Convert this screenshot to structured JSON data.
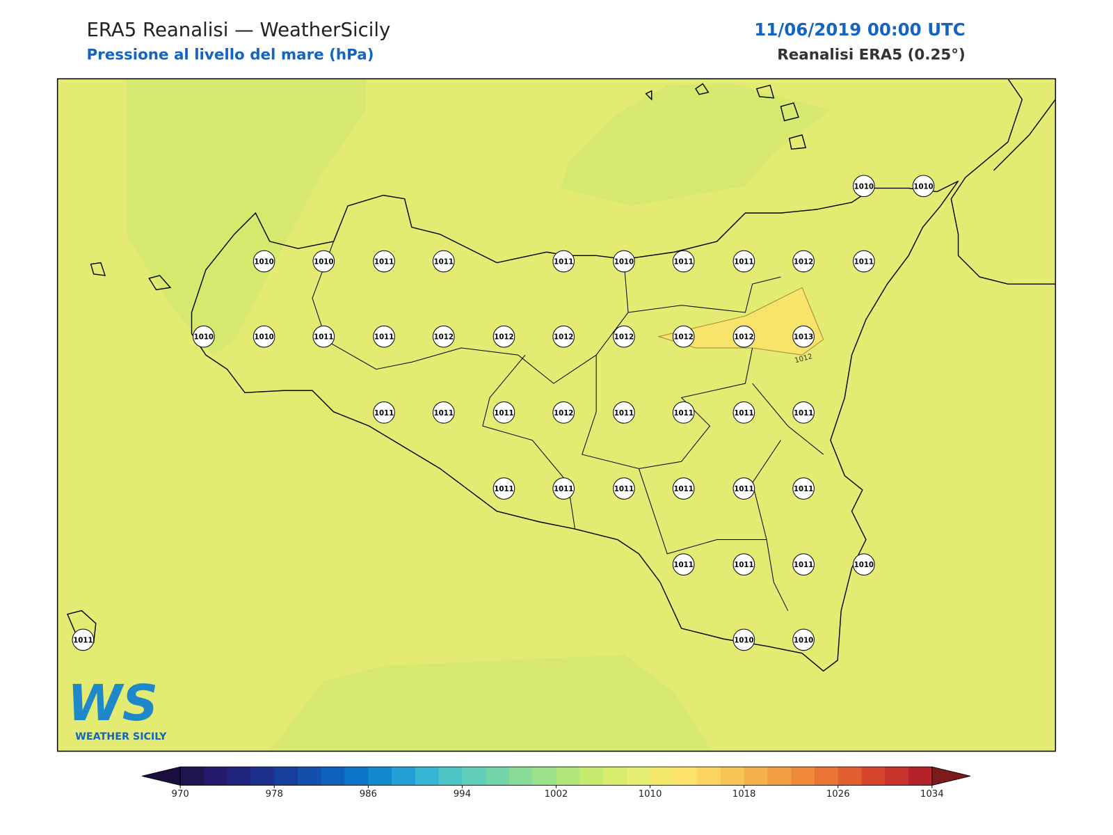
{
  "header": {
    "title": "ERA5 Reanalisi — WeatherSicily",
    "subtitle": "Pressione al livello del mare (hPa)",
    "date": "11/06/2019 00:00 UTC",
    "source": "Reanalisi ERA5 (0.25°)"
  },
  "map": {
    "stations": [
      1010,
      1010,
      1010,
      1010,
      1011,
      1011,
      1011,
      1010,
      1011,
      1011,
      1012,
      1011,
      1010,
      1010,
      1011,
      1011,
      1012,
      1012,
      1012,
      1012,
      1012,
      1012,
      1013,
      1011,
      1011,
      1011,
      1012,
      1011,
      1011,
      1011,
      1011,
      1011,
      1011,
      1011,
      1011,
      1011,
      1011,
      1011,
      1011,
      1011,
      1010,
      1011,
      1010,
      1010
    ],
    "contour_label": "1012"
  },
  "colorbar": {
    "lim": [
      970,
      1034
    ],
    "ticks": [
      970,
      978,
      986,
      994,
      1002,
      1010,
      1018,
      1026,
      1034
    ],
    "colors": [
      "#1f1450",
      "#241a6b",
      "#22257e",
      "#1c308c",
      "#17409c",
      "#1250ac",
      "#0e62bb",
      "#0c74c8",
      "#128ad0",
      "#22a0d6",
      "#35b6d4",
      "#4cc4c6",
      "#5fcdb8",
      "#72d5a8",
      "#88dc98",
      "#9de28a",
      "#b1e67a",
      "#c6ea6e",
      "#d8ec6c",
      "#e6ee72",
      "#f3e86a",
      "#fbe26a",
      "#fbd462",
      "#f8c455",
      "#f5b14a",
      "#f29e42",
      "#ee893a",
      "#e97434",
      "#e15e2f",
      "#d6462c",
      "#c7322b",
      "#b32329"
    ],
    "under": "#1a0f3f",
    "over": "#7d1a1c"
  },
  "logo": {
    "mark": "WS",
    "name": "WEATHER SICILY"
  }
}
